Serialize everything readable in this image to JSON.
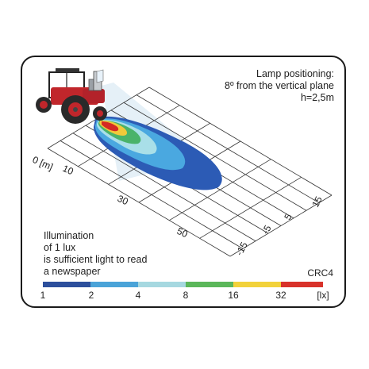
{
  "lamp_text": [
    "Lamp positioning:",
    "8º from the vertical plane",
    "h=2,5m"
  ],
  "lux_text": [
    "Illumination",
    "of 1 lux",
    "is sufficient light to read",
    "a newspaper"
  ],
  "model_code": "CRC4",
  "distance_axis": {
    "unit_label": "0 [m]",
    "ticks": [
      "10",
      "30",
      "50"
    ]
  },
  "lateral_axis": {
    "ticks": [
      "15",
      "5",
      "-5",
      "-15"
    ]
  },
  "scale": {
    "labels": [
      "1",
      "2",
      "4",
      "8",
      "16",
      "32",
      "[lx]"
    ],
    "colors": [
      "#2c4f9c",
      "#4aa3d8",
      "#a6d8e0",
      "#5bb75a",
      "#f2d23a",
      "#d8322a"
    ]
  },
  "beam_colors": {
    "lux_1": "#2c5bb5",
    "lux_2": "#4aa8e0",
    "lux_4": "#a9dfe8",
    "lux_8": "#4ab36a",
    "lux_16": "#f1c93a",
    "lux_32": "#d42a24"
  }
}
